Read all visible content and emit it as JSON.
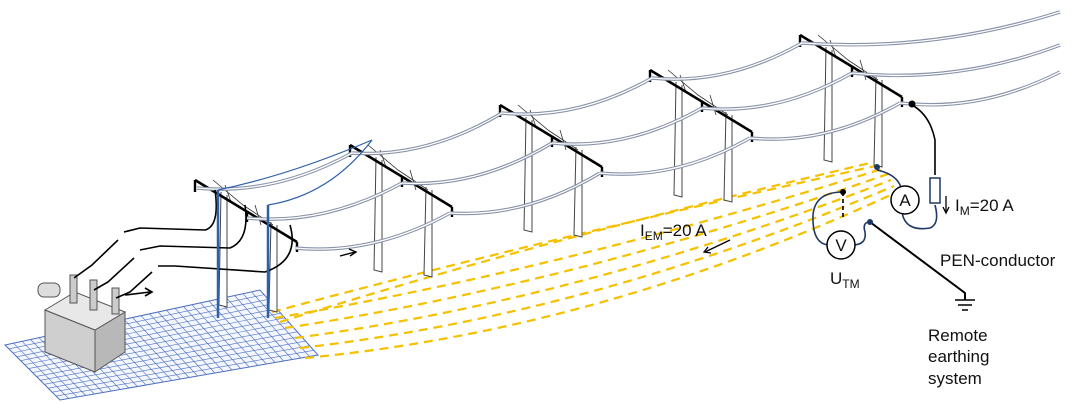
{
  "labels": {
    "i_em": {
      "main": "I",
      "sub": "EM",
      "rest": "=20 A"
    },
    "i_m": {
      "main": "I",
      "sub": "M",
      "rest": "=20 A"
    },
    "u_tm": {
      "main": "U",
      "sub": "TM"
    },
    "ammeter": "A",
    "voltmeter": "V",
    "pen_conductor": "PEN-conductor",
    "remote_earthing": [
      "Remote",
      "earthing",
      "system"
    ]
  },
  "colors": {
    "earth_wire": "#f5c000",
    "measurement_lead": "#1f3864",
    "overhead_earth_wire": "#2e5fa8",
    "grid": "#4a6fc0",
    "conductor": "#8892a8"
  }
}
